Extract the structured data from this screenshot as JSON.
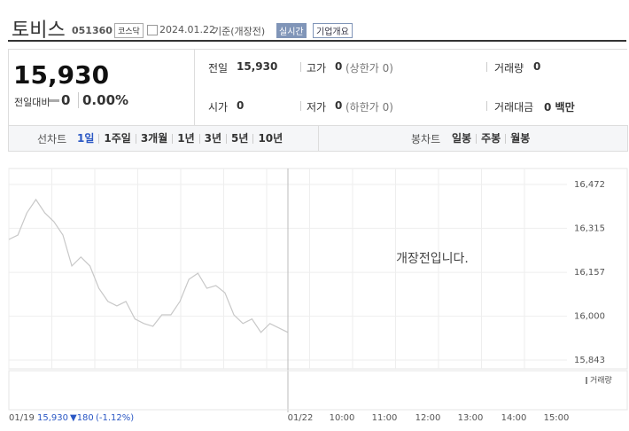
{
  "header": {
    "name": "토비스",
    "code": "051360",
    "market": "코스닥",
    "date": "2024.01.22",
    "basis": "기준(개장전)",
    "realtime": "실시간",
    "company": "기업개요"
  },
  "price": {
    "current": "15,930",
    "change_label": "전일대비",
    "change": "0",
    "rate": "0.00%"
  },
  "stats": [
    {
      "label": "전일",
      "value": "15,930"
    },
    {
      "label": "고가",
      "value": "0",
      "extra": "(상한가 0)"
    },
    {
      "label": "거래량",
      "value": "0"
    },
    {
      "label": "시가",
      "value": "0"
    },
    {
      "label": "저가",
      "value": "0",
      "extra": "(하한가 0)"
    },
    {
      "label": "거래대금",
      "value": "0 백만"
    }
  ],
  "tabs": {
    "line_label": "선차트",
    "line": [
      "1일",
      "1주일",
      "3개월",
      "1년",
      "3년",
      "5년",
      "10년"
    ],
    "candle_label": "봉차트",
    "candle": [
      "일봉",
      "주봉",
      "월봉"
    ]
  },
  "chart": {
    "type": "line",
    "overlay": "개장전입니다.",
    "volume_label": "거래량",
    "ylim": [
      15843,
      16472
    ],
    "yticks": [
      {
        "value": 16472,
        "label": "16,472"
      },
      {
        "value": 16315,
        "label": "16,315"
      },
      {
        "value": 16157,
        "label": "16,157"
      },
      {
        "value": 16000,
        "label": "16,000"
      },
      {
        "value": 15843,
        "label": "15,843"
      }
    ],
    "xlabels": [
      "01/22",
      "10:00",
      "11:00",
      "12:00",
      "13:00",
      "14:00",
      "15:00"
    ],
    "prev_day_line": {
      "color": "#c8c8c8",
      "values": [
        16275,
        16291,
        16370,
        16418,
        16370,
        16339,
        16291,
        16180,
        16212,
        16180,
        16100,
        16053,
        16037,
        16053,
        15990,
        15974,
        15964,
        16005,
        16005,
        16053,
        16132,
        16154,
        16100,
        16110,
        16084,
        16005,
        15974,
        15990,
        15942,
        15974,
        15958,
        15942
      ]
    },
    "prev": {
      "date": "01/19",
      "close": "15,930",
      "change": "▼180",
      "rate": "(-1.12%)"
    }
  }
}
